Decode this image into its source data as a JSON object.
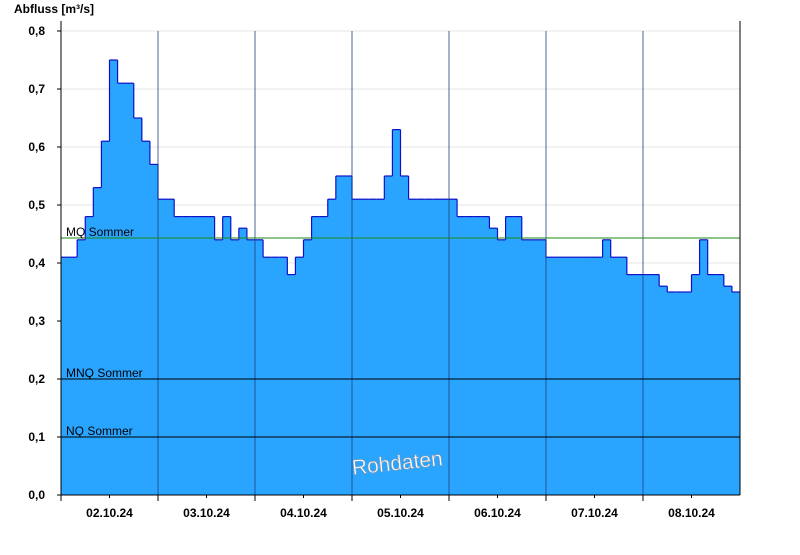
{
  "chart_data": {
    "type": "step-area",
    "y_axis_label": "Abfluss [m³/s]",
    "watermark": "Rohdaten",
    "color": "#2aa5ff",
    "line_color": "#1010c8",
    "ylim": [
      0,
      0.8
    ],
    "yticks": [
      {
        "value": 0,
        "label": "0,0"
      },
      {
        "value": 0.1,
        "label": "0,1"
      },
      {
        "value": 0.2,
        "label": "0,2"
      },
      {
        "value": 0.3,
        "label": "0,3"
      },
      {
        "value": 0.4,
        "label": "0,4"
      },
      {
        "value": 0.5,
        "label": "0,5"
      },
      {
        "value": 0.6,
        "label": "0,6"
      },
      {
        "value": 0.7,
        "label": "0,7"
      },
      {
        "value": 0.8,
        "label": "0,8"
      }
    ],
    "grid": true,
    "categories": [
      null,
      null,
      null,
      null,
      null,
      null,
      "02.10.24",
      null,
      null,
      null,
      null,
      null,
      null,
      null,
      null,
      null,
      null,
      null,
      "03.10.24",
      null,
      null,
      null,
      null,
      null,
      null,
      null,
      null,
      null,
      null,
      null,
      "04.10.24",
      null,
      null,
      null,
      null,
      null,
      null,
      null,
      null,
      null,
      null,
      null,
      "05.10.24",
      null,
      null,
      null,
      null,
      null,
      null,
      null,
      null,
      null,
      null,
      null,
      "06.10.24",
      null,
      null,
      null,
      null,
      null,
      null,
      null,
      null,
      null,
      null,
      null,
      "07.10.24",
      null,
      null,
      null,
      null,
      null,
      null,
      null,
      null,
      null,
      null,
      null,
      "08.10.24",
      null,
      null,
      null,
      null,
      null
    ],
    "values": [
      0.41,
      0.41,
      0.44,
      0.48,
      0.53,
      0.61,
      0.75,
      0.71,
      0.71,
      0.65,
      0.61,
      0.57,
      0.51,
      0.51,
      0.48,
      0.48,
      0.48,
      0.48,
      0.48,
      0.44,
      0.48,
      0.44,
      0.46,
      0.44,
      0.44,
      0.41,
      0.41,
      0.41,
      0.38,
      0.41,
      0.44,
      0.48,
      0.48,
      0.51,
      0.55,
      0.55,
      0.51,
      0.51,
      0.51,
      0.51,
      0.55,
      0.63,
      0.55,
      0.51,
      0.51,
      0.51,
      0.51,
      0.51,
      0.51,
      0.48,
      0.48,
      0.48,
      0.48,
      0.46,
      0.44,
      0.48,
      0.48,
      0.44,
      0.44,
      0.44,
      0.41,
      0.41,
      0.41,
      0.41,
      0.41,
      0.41,
      0.41,
      0.44,
      0.41,
      0.41,
      0.38,
      0.38,
      0.38,
      0.38,
      0.36,
      0.35,
      0.35,
      0.35,
      0.38,
      0.44,
      0.38,
      0.38,
      0.36,
      0.35
    ],
    "reference_lines": [
      {
        "name": "MQ Sommer",
        "value": 0.443,
        "color": "#1a8a1a"
      },
      {
        "name": "MNQ Sommer",
        "value": 0.2,
        "color": "#000000"
      },
      {
        "name": "NQ Sommer",
        "value": 0.1,
        "color": "#000000"
      }
    ]
  }
}
